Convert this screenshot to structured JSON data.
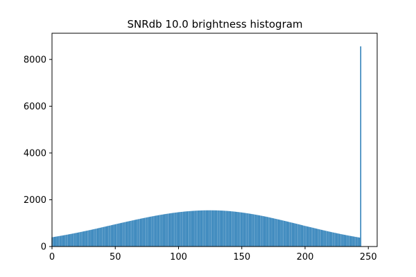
{
  "chart_data": {
    "type": "bar",
    "title": "SNRdb 10.0 brightness histogram",
    "color": "#1f77b4",
    "bar_width": 0.8,
    "x": [
      0,
      1,
      2,
      3,
      4,
      5,
      6,
      7,
      8,
      9,
      10,
      11,
      12,
      13,
      14,
      15,
      16,
      17,
      18,
      19,
      20,
      21,
      22,
      23,
      24,
      25,
      26,
      27,
      28,
      29,
      30,
      31,
      32,
      33,
      34,
      35,
      36,
      37,
      38,
      39,
      40,
      41,
      42,
      43,
      44,
      45,
      46,
      47,
      48,
      49,
      50,
      51,
      52,
      53,
      54,
      55,
      56,
      57,
      58,
      59,
      60,
      61,
      62,
      63,
      64,
      65,
      66,
      67,
      68,
      69,
      70,
      71,
      72,
      73,
      74,
      75,
      76,
      77,
      78,
      79,
      80,
      81,
      82,
      83,
      84,
      85,
      86,
      87,
      88,
      89,
      90,
      91,
      92,
      93,
      94,
      95,
      96,
      97,
      98,
      99,
      100,
      101,
      102,
      103,
      104,
      105,
      106,
      107,
      108,
      109,
      110,
      111,
      112,
      113,
      114,
      115,
      116,
      117,
      118,
      119,
      120,
      121,
      122,
      123,
      124,
      125,
      126,
      127,
      128,
      129,
      130,
      131,
      132,
      133,
      134,
      135,
      136,
      137,
      138,
      139,
      140,
      141,
      142,
      143,
      144,
      145,
      146,
      147,
      148,
      149,
      150,
      151,
      152,
      153,
      154,
      155,
      156,
      157,
      158,
      159,
      160,
      161,
      162,
      163,
      164,
      165,
      166,
      167,
      168,
      169,
      170,
      171,
      172,
      173,
      174,
      175,
      176,
      177,
      178,
      179,
      180,
      181,
      182,
      183,
      184,
      185,
      186,
      187,
      188,
      189,
      190,
      191,
      192,
      193,
      194,
      195,
      196,
      197,
      198,
      199,
      200,
      201,
      202,
      203,
      204,
      205,
      206,
      207,
      208,
      209,
      210,
      211,
      212,
      213,
      214,
      215,
      216,
      217,
      218,
      219,
      220,
      221,
      222,
      223,
      224,
      225,
      226,
      227,
      228,
      229,
      230,
      231,
      232,
      233,
      234,
      235,
      236,
      237,
      238,
      239,
      240,
      241,
      242,
      243,
      244
    ],
    "values": [
      396,
      405,
      414,
      423,
      432,
      441,
      451,
      460,
      470,
      479,
      489,
      499,
      509,
      519,
      529,
      539,
      550,
      560,
      571,
      581,
      592,
      603,
      614,
      626,
      637,
      648,
      659,
      671,
      682,
      694,
      705,
      717,
      729,
      741,
      753,
      765,
      777,
      790,
      802,
      815,
      827,
      839,
      852,
      864,
      877,
      889,
      901,
      914,
      926,
      939,
      951,
      963,
      976,
      988,
      1001,
      1013,
      1025,
      1037,
      1049,
      1061,
      1073,
      1085,
      1097,
      1109,
      1121,
      1133,
      1145,
      1156,
      1168,
      1179,
      1191,
      1202,
      1213,
      1224,
      1235,
      1246,
      1257,
      1267,
      1278,
      1288,
      1299,
      1309,
      1319,
      1328,
      1338,
      1348,
      1357,
      1366,
      1375,
      1384,
      1393,
      1401,
      1409,
      1417,
      1425,
      1433,
      1440,
      1447,
      1454,
      1461,
      1468,
      1474,
      1480,
      1485,
      1491,
      1497,
      1502,
      1506,
      1511,
      1515,
      1520,
      1523,
      1527,
      1530,
      1534,
      1537,
      1539,
      1541,
      1543,
      1545,
      1547,
      1548,
      1548,
      1549,
      1549,
      1550,
      1549,
      1548,
      1548,
      1547,
      1546,
      1544,
      1542,
      1539,
      1537,
      1535,
      1531,
      1527,
      1524,
      1520,
      1516,
      1511,
      1505,
      1500,
      1494,
      1489,
      1482,
      1476,
      1469,
      1463,
      1456,
      1448,
      1440,
      1433,
      1425,
      1417,
      1408,
      1399,
      1390,
      1381,
      1372,
      1362,
      1352,
      1342,
      1332,
      1322,
      1311,
      1300,
      1290,
      1279,
      1268,
      1256,
      1244,
      1231,
      1219,
      1207,
      1195,
      1183,
      1170,
      1158,
      1146,
      1133,
      1120,
      1108,
      1095,
      1082,
      1069,
      1056,
      1042,
      1029,
      1016,
      1003,
      990,
      977,
      964,
      951,
      937,
      923,
      909,
      895,
      881,
      869,
      856,
      844,
      831,
      819,
      806,
      792,
      779,
      766,
      753,
      740,
      727,
      715,
      702,
      689,
      677,
      665,
      652,
      640,
      628,
      616,
      605,
      593,
      582,
      570,
      559,
      548,
      536,
      525,
      514,
      504,
      493,
      483,
      472,
      462,
      452,
      442,
      433,
      423,
      413,
      403,
      394,
      384,
      8560
    ],
    "xlim": [
      0,
      257
    ],
    "xticks": [
      0,
      50,
      100,
      150,
      200,
      250
    ],
    "ylim": [
      0,
      9120
    ],
    "yticks": [
      0,
      2000,
      4000,
      6000,
      8000
    ]
  }
}
